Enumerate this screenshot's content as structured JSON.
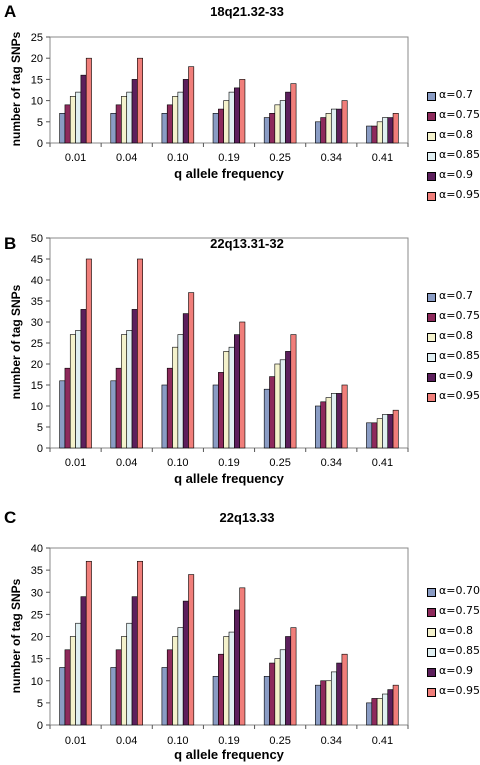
{
  "colors": {
    "a0.7": "#8a9cc4",
    "a0.75": "#8e2a5c",
    "a0.8": "#f4f2cc",
    "a0.85": "#e0eff2",
    "a0.9": "#5c1f5c",
    "a0.95": "#f07e7a"
  },
  "chart_data": [
    {
      "type": "bar",
      "panel": "A",
      "title": "18q21.32-33",
      "xlabel": "q allele frequency",
      "ylabel": "number of tag SNPs",
      "categories": [
        "0.01",
        "0.04",
        "0.10",
        "0.19",
        "0.25",
        "0.34",
        "0.41"
      ],
      "ylim": [
        0,
        25
      ],
      "yticks": [
        0,
        5,
        10,
        15,
        20,
        25
      ],
      "legend_position": "right",
      "series": [
        {
          "name": "α=0.7",
          "values": [
            7,
            7,
            7,
            7,
            6,
            5,
            4
          ]
        },
        {
          "name": "α=0.75",
          "values": [
            9,
            9,
            9,
            8,
            7,
            6,
            4
          ]
        },
        {
          "name": "α=0.8",
          "values": [
            11,
            11,
            11,
            10,
            9,
            7,
            5
          ]
        },
        {
          "name": "α=0.85",
          "values": [
            12,
            12,
            12,
            12,
            10,
            8,
            6
          ]
        },
        {
          "name": "α=0.9",
          "values": [
            16,
            15,
            15,
            13,
            12,
            8,
            6
          ]
        },
        {
          "name": "α=0.95",
          "values": [
            20,
            20,
            18,
            15,
            14,
            10,
            7
          ]
        }
      ]
    },
    {
      "type": "bar",
      "panel": "B",
      "title": "22q13.31-32",
      "xlabel": "q allele frequency",
      "ylabel": "number of tag SNPs",
      "categories": [
        "0.01",
        "0.04",
        "0.10",
        "0.19",
        "0.25",
        "0.34",
        "0.41"
      ],
      "ylim": [
        0,
        50
      ],
      "yticks": [
        0,
        5,
        10,
        15,
        20,
        25,
        30,
        35,
        40,
        45,
        50
      ],
      "legend_position": "right",
      "series": [
        {
          "name": "α=0.7",
          "values": [
            16,
            16,
            15,
            15,
            14,
            10,
            6
          ]
        },
        {
          "name": "α=0.75",
          "values": [
            19,
            19,
            19,
            18,
            17,
            11,
            6
          ]
        },
        {
          "name": "α=0.8",
          "values": [
            27,
            27,
            24,
            23,
            20,
            12,
            7
          ]
        },
        {
          "name": "α=0.85",
          "values": [
            28,
            28,
            27,
            24,
            21,
            13,
            8
          ]
        },
        {
          "name": "α=0.9",
          "values": [
            33,
            33,
            32,
            27,
            23,
            13,
            8
          ]
        },
        {
          "name": "α=0.95",
          "values": [
            45,
            45,
            37,
            30,
            27,
            15,
            9
          ]
        }
      ]
    },
    {
      "type": "bar",
      "panel": "C",
      "title": "22q13.33",
      "xlabel": "q allele frequency",
      "ylabel": "number of tag SNPs",
      "categories": [
        "0.01",
        "0.04",
        "0.10",
        "0.19",
        "0.25",
        "0.34",
        "0.41"
      ],
      "ylim": [
        0,
        40
      ],
      "yticks": [
        0,
        5,
        10,
        15,
        20,
        25,
        30,
        35,
        40
      ],
      "legend_position": "right",
      "series": [
        {
          "name": "α=0.70",
          "values": [
            13,
            13,
            13,
            11,
            11,
            9,
            5
          ]
        },
        {
          "name": "α=0.75",
          "values": [
            17,
            17,
            17,
            16,
            14,
            10,
            6
          ]
        },
        {
          "name": "α=0.8",
          "values": [
            20,
            20,
            20,
            20,
            15,
            10,
            6
          ]
        },
        {
          "name": "α=0.85",
          "values": [
            23,
            23,
            22,
            21,
            17,
            12,
            7
          ]
        },
        {
          "name": "α=0.9",
          "values": [
            29,
            29,
            28,
            26,
            20,
            14,
            8
          ]
        },
        {
          "name": "α=0.95",
          "values": [
            37,
            37,
            34,
            31,
            22,
            16,
            9
          ]
        }
      ]
    }
  ]
}
